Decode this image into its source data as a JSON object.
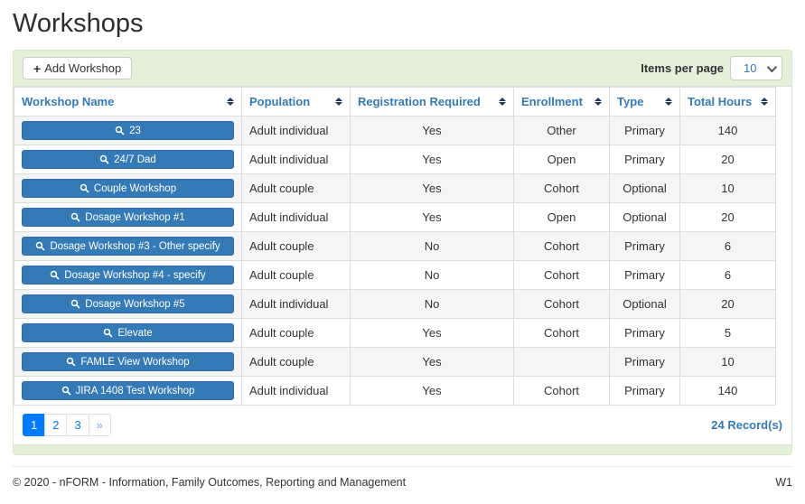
{
  "page": {
    "title": "Workshops"
  },
  "toolbar": {
    "add_button_label": "Add Workshop",
    "plus_icon": "+",
    "items_per_page_label": "Items per page",
    "items_per_page_value": "10"
  },
  "table": {
    "columns": [
      "Workshop Name",
      "Population",
      "Registration Required",
      "Enrollment",
      "Type",
      "Total Hours"
    ],
    "rows": [
      {
        "name": "23",
        "population": "Adult individual",
        "registration_required": "Yes",
        "enrollment": "Other",
        "type": "Primary",
        "total_hours": "140"
      },
      {
        "name": "24/7 Dad",
        "population": "Adult individual",
        "registration_required": "Yes",
        "enrollment": "Open",
        "type": "Primary",
        "total_hours": "20"
      },
      {
        "name": "Couple Workshop",
        "population": "Adult couple",
        "registration_required": "Yes",
        "enrollment": "Cohort",
        "type": "Optional",
        "total_hours": "10"
      },
      {
        "name": "Dosage Workshop #1",
        "population": "Adult individual",
        "registration_required": "Yes",
        "enrollment": "Open",
        "type": "Optional",
        "total_hours": "20"
      },
      {
        "name": "Dosage Workshop #3 - Other specify",
        "population": "Adult couple",
        "registration_required": "No",
        "enrollment": "Cohort",
        "type": "Primary",
        "total_hours": "6"
      },
      {
        "name": "Dosage Workshop #4 - specify",
        "population": "Adult couple",
        "registration_required": "No",
        "enrollment": "Cohort",
        "type": "Primary",
        "total_hours": "6"
      },
      {
        "name": "Dosage Workshop #5",
        "population": "Adult individual",
        "registration_required": "No",
        "enrollment": "Cohort",
        "type": "Optional",
        "total_hours": "20"
      },
      {
        "name": "Elevate",
        "population": "Adult couple",
        "registration_required": "Yes",
        "enrollment": "Cohort",
        "type": "Primary",
        "total_hours": "5"
      },
      {
        "name": "FAMLE View Workshop",
        "population": "Adult couple",
        "registration_required": "Yes",
        "enrollment": "",
        "type": "Primary",
        "total_hours": "10"
      },
      {
        "name": "JIRA 1408 Test Workshop",
        "population": "Adult individual",
        "registration_required": "Yes",
        "enrollment": "Cohort",
        "type": "Primary",
        "total_hours": "140"
      }
    ]
  },
  "pagination": {
    "pages": [
      "1",
      "2",
      "3"
    ],
    "active_page": "1",
    "next_symbol": "»",
    "records_text": "24 Record(s)"
  },
  "footer": {
    "copyright": "© 2020 - nFORM - Information, Family Outcomes, Reporting and Management",
    "page_code": "W1"
  },
  "colors": {
    "accent_blue": "#337ab7",
    "pagination_blue": "#007bff",
    "panel_green": "#e3f1db",
    "panel_border": "#d6e9c6",
    "stripe_gray": "#f5f5f5"
  }
}
